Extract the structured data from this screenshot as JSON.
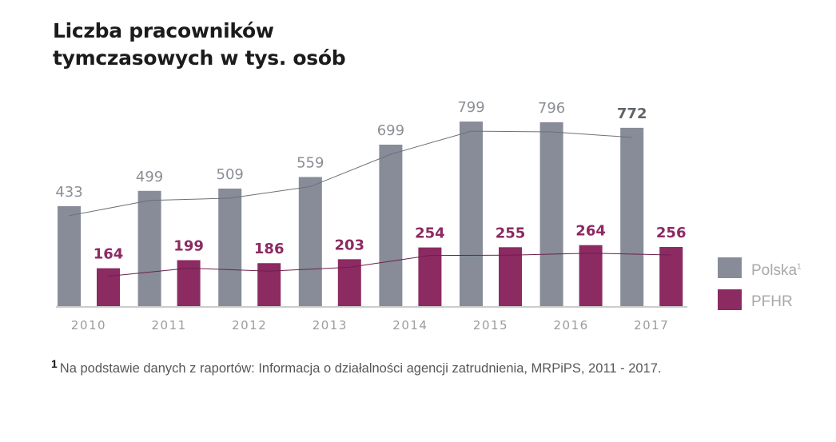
{
  "title_lines": [
    "Liczba pracowników",
    "tymczasowych w tys. osób"
  ],
  "legend": {
    "polska": "Polska",
    "polska_sup": "1",
    "pfhr": "PFHR"
  },
  "footnote": {
    "mark": "1",
    "text": "Na podstawie danych z raportów: Informacja o działalności agencji zatrudnienia, MRPiPS, 2011 - 2017."
  },
  "colors": {
    "polska": "#878c98",
    "pfhr": "#8c2a62",
    "polska_label": "#8b8f96",
    "pfhr_label": "#8c2a62",
    "axis": "#9a9a9a"
  },
  "chart_data": {
    "type": "bar",
    "categories": [
      "2010",
      "2011",
      "2012",
      "2013",
      "2014",
      "2015",
      "2016",
      "2017"
    ],
    "series": [
      {
        "name": "Polska",
        "values": [
          433,
          499,
          509,
          559,
          699,
          799,
          796,
          772
        ],
        "color": "#878c98"
      },
      {
        "name": "PFHR",
        "values": [
          164,
          199,
          186,
          203,
          254,
          255,
          264,
          256
        ],
        "color": "#8c2a62"
      }
    ],
    "data_labels_shown": true,
    "bold_last_labels": true,
    "trend_lines": true,
    "legend_position": "right"
  }
}
